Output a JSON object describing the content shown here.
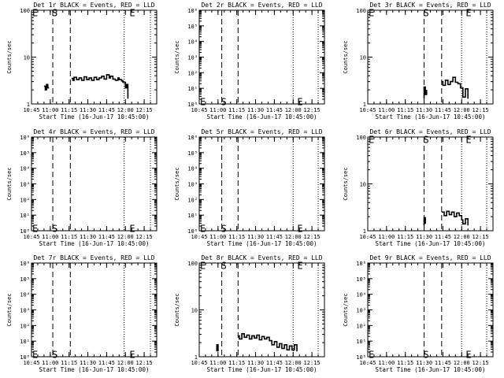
{
  "window": {
    "width": 640,
    "height": 480
  },
  "x_tick_labels": [
    "10:45",
    "11:00",
    "11:15",
    "11:30",
    "11:45",
    "12:00",
    "12:15"
  ],
  "xlabel": "Start Time (16-Jun-17 10:45:00)",
  "ylabel": "Counts/sec",
  "chart_data": [
    {
      "type": "line",
      "title": "Det 1r BLACK = Events, RED = LLD",
      "scale": "log",
      "ylim": [
        1,
        100
      ],
      "yticks": [
        "1",
        "10",
        "100"
      ],
      "marks": {
        "S": "11:02",
        "E": "12:02"
      },
      "ymark": 90,
      "dashed": [
        "11:02",
        "11:16"
      ],
      "dotted": [
        "11:59",
        "12:20"
      ],
      "segments": [
        {
          "x": [
            "10:55",
            "10:56",
            "10:56",
            "10:57",
            "10:57",
            "10:58",
            "10:58",
            "10:59"
          ],
          "y": [
            2.4,
            2.4,
            2.0,
            2.0,
            2.6,
            2.6,
            2.2,
            2.2
          ]
        },
        {
          "x": [
            "11:17",
            "11:18",
            "11:18",
            "11:19",
            "11:19",
            "11:21",
            "11:21",
            "11:23",
            "11:23",
            "11:25",
            "11:25",
            "11:27",
            "11:27",
            "11:29",
            "11:29",
            "11:31",
            "11:31",
            "11:33",
            "11:33",
            "11:35",
            "11:35",
            "11:37",
            "11:37",
            "11:39",
            "11:39",
            "11:41",
            "11:41",
            "11:43",
            "11:43",
            "11:45",
            "11:45",
            "11:47",
            "11:47",
            "11:48",
            "11:48",
            "11:50",
            "11:50",
            "11:52",
            "11:52",
            "11:54",
            "11:54",
            "11:55",
            "11:55",
            "11:57",
            "11:57",
            "11:58",
            "11:58",
            "12:00",
            "12:00",
            "12:01",
            "12:01",
            "12:02",
            "12:02"
          ],
          "y": [
            3.5,
            3.5,
            3.2,
            3.2,
            3.7,
            3.7,
            3.3,
            3.3,
            3.6,
            3.6,
            3.2,
            3.2,
            3.8,
            3.8,
            3.3,
            3.3,
            3.6,
            3.6,
            3.2,
            3.2,
            3.7,
            3.7,
            3.3,
            3.3,
            3.6,
            3.6,
            3.9,
            3.9,
            3.4,
            3.4,
            4.2,
            4.2,
            3.6,
            3.6,
            3.9,
            3.9,
            3.4,
            3.4,
            3.2,
            3.2,
            3.6,
            3.6,
            3.3,
            3.3,
            3.1,
            3.1,
            2.9,
            2.9,
            2.2,
            2.2,
            2.6,
            2.6,
            1.3
          ]
        }
      ]
    },
    {
      "type": "line",
      "title": "Det 2r BLACK = Events, RED = LLD",
      "scale": "log",
      "ylim": [
        1,
        1000000
      ],
      "yticks": [
        "10⁰",
        "10¹",
        "10²",
        "10³",
        "10⁴",
        "10⁵",
        "10⁶"
      ],
      "marks": {
        "S": "11:03",
        "E": "12:02"
      },
      "ymark": 1.5,
      "dashed": [
        "11:03",
        "11:16"
      ],
      "dotted": [
        "12:00",
        "12:20"
      ],
      "segments": []
    },
    {
      "type": "line",
      "title": "Det 3r BLACK = Events, RED = LLD",
      "scale": "log",
      "ylim": [
        1,
        100
      ],
      "yticks": [
        "1",
        "10",
        "100"
      ],
      "marks": {
        "S": "11:30",
        "E": "12:02"
      },
      "ymark": 90,
      "dashed": [
        "11:30",
        "11:44"
      ],
      "dotted": [
        "12:00",
        "12:20"
      ],
      "segments": [
        {
          "x": [
            "11:30",
            "11:30",
            "11:31",
            "11:31",
            "11:32",
            "11:32"
          ],
          "y": [
            1.3,
            2.3,
            2.3,
            1.6,
            1.6,
            2.0
          ]
        },
        {
          "x": [
            "11:44",
            "11:45",
            "11:45",
            "11:47",
            "11:47",
            "11:49",
            "11:49",
            "11:51",
            "11:51",
            "11:53",
            "11:53",
            "11:55",
            "11:55",
            "11:57",
            "11:57",
            "11:59",
            "11:59",
            "12:01",
            "12:01",
            "12:03",
            "12:03",
            "12:05",
            "12:05"
          ],
          "y": [
            3.0,
            3.0,
            2.5,
            2.5,
            3.2,
            3.2,
            2.6,
            2.6,
            3.0,
            3.0,
            3.7,
            3.7,
            2.9,
            2.9,
            2.7,
            2.7,
            2.2,
            2.2,
            1.4,
            1.4,
            2.1,
            2.1,
            1.3
          ]
        }
      ]
    },
    {
      "type": "line",
      "title": "Det 4r BLACK = Events, RED = LLD",
      "scale": "log",
      "ylim": [
        1,
        1000000
      ],
      "yticks": [
        "10⁰",
        "10¹",
        "10²",
        "10³",
        "10⁴",
        "10⁵",
        "10⁶"
      ],
      "marks": {
        "S": "11:02",
        "E": "12:02"
      },
      "ymark": 1.5,
      "dashed": [
        "11:02",
        "11:16"
      ],
      "dotted": [
        "11:59",
        "12:20"
      ],
      "segments": []
    },
    {
      "type": "line",
      "title": "Det 5r BLACK = Events, RED = LLD",
      "scale": "log",
      "ylim": [
        1,
        1000000
      ],
      "yticks": [
        "10⁰",
        "10¹",
        "10²",
        "10³",
        "10⁴",
        "10⁵",
        "10⁶"
      ],
      "marks": {
        "S": "11:03",
        "E": "12:02"
      },
      "ymark": 1.5,
      "dashed": [
        "11:03",
        "11:16"
      ],
      "dotted": [
        "12:00",
        "12:20"
      ],
      "segments": []
    },
    {
      "type": "line",
      "title": "Det 6r BLACK = Events, RED = LLD",
      "scale": "log",
      "ylim": [
        1,
        100
      ],
      "yticks": [
        "1",
        "10",
        "100"
      ],
      "marks": {
        "S": "11:30",
        "E": "12:02"
      },
      "ymark": 90,
      "dashed": [
        "11:30",
        "11:44"
      ],
      "dotted": [
        "12:00",
        "12:20"
      ],
      "segments": [
        {
          "x": [
            "11:30",
            "11:30",
            "11:31",
            "11:31"
          ],
          "y": [
            1.3,
            1.9,
            1.9,
            1.4
          ]
        },
        {
          "x": [
            "11:44",
            "11:46",
            "11:46",
            "11:48",
            "11:48",
            "11:50",
            "11:50",
            "11:52",
            "11:52",
            "11:54",
            "11:54",
            "11:56",
            "11:56",
            "11:58",
            "11:58",
            "12:00",
            "12:00",
            "12:01",
            "12:01",
            "12:03",
            "12:03",
            "12:05",
            "12:05"
          ],
          "y": [
            2.5,
            2.5,
            2.1,
            2.1,
            2.6,
            2.6,
            2.2,
            2.2,
            2.5,
            2.5,
            2.0,
            2.0,
            2.4,
            2.4,
            2.1,
            2.1,
            1.7,
            1.7,
            1.4,
            1.4,
            1.8,
            1.8,
            1.3
          ]
        }
      ]
    },
    {
      "type": "line",
      "title": "Det 7r BLACK = Events, RED = LLD",
      "scale": "log",
      "ylim": [
        1,
        1000000
      ],
      "yticks": [
        "10⁰",
        "10¹",
        "10²",
        "10³",
        "10⁴",
        "10⁵",
        "10⁶"
      ],
      "marks": {
        "S": "11:02",
        "E": "12:02"
      },
      "ymark": 1.5,
      "dashed": [
        "11:02",
        "11:16"
      ],
      "dotted": [
        "11:59",
        "12:20"
      ],
      "segments": []
    },
    {
      "type": "line",
      "title": "Det 8r BLACK = Events, RED = LLD",
      "scale": "log",
      "ylim": [
        1,
        100
      ],
      "yticks": [
        "1",
        "10",
        "100"
      ],
      "marks": {
        "S": "11:03",
        "E": "12:02"
      },
      "ymark": 90,
      "dashed": [
        "11:03",
        "11:16"
      ],
      "dotted": [
        "12:00",
        "12:20"
      ],
      "segments": [
        {
          "x": [
            "10:59",
            "10:59",
            "11:00",
            "11:00"
          ],
          "y": [
            1.3,
            1.8,
            1.8,
            1.3
          ]
        },
        {
          "x": [
            "11:16",
            "11:17",
            "11:17",
            "11:19",
            "11:19",
            "11:21",
            "11:21",
            "11:23",
            "11:23",
            "11:25",
            "11:25",
            "11:27",
            "11:27",
            "11:29",
            "11:29",
            "11:31",
            "11:31",
            "11:33",
            "11:33",
            "11:35",
            "11:35",
            "11:37",
            "11:37",
            "11:39",
            "11:39",
            "11:41",
            "11:41",
            "11:43",
            "11:43",
            "11:45",
            "11:45",
            "11:47",
            "11:47",
            "11:49",
            "11:49",
            "11:51",
            "11:51",
            "11:53",
            "11:53",
            "11:55",
            "11:55",
            "11:57",
            "11:57",
            "11:59",
            "11:59",
            "12:01",
            "12:01",
            "12:03",
            "12:03"
          ],
          "y": [
            2.8,
            2.8,
            2.4,
            2.4,
            3.1,
            3.1,
            2.6,
            2.6,
            2.9,
            2.9,
            2.4,
            2.4,
            2.8,
            2.8,
            2.5,
            2.5,
            2.9,
            2.9,
            2.3,
            2.3,
            2.7,
            2.7,
            2.4,
            2.4,
            2.6,
            2.6,
            2.2,
            2.2,
            1.8,
            1.8,
            2.1,
            2.1,
            1.6,
            1.6,
            1.9,
            1.9,
            1.5,
            1.5,
            1.8,
            1.8,
            1.4,
            1.4,
            1.7,
            1.7,
            1.4,
            1.4,
            1.8,
            1.8,
            1.3
          ]
        }
      ]
    },
    {
      "type": "line",
      "title": "Det 9r BLACK = Events, RED = LLD",
      "scale": "log",
      "ylim": [
        1,
        1000000
      ],
      "yticks": [
        "10⁰",
        "10¹",
        "10²",
        "10³",
        "10⁴",
        "10⁵",
        "10⁶"
      ],
      "marks": {
        "S": "11:30",
        "E": "12:02"
      },
      "ymark": 1.5,
      "dashed": [
        "11:30",
        "11:44"
      ],
      "dotted": [
        "12:00",
        "12:20"
      ],
      "segments": []
    }
  ]
}
